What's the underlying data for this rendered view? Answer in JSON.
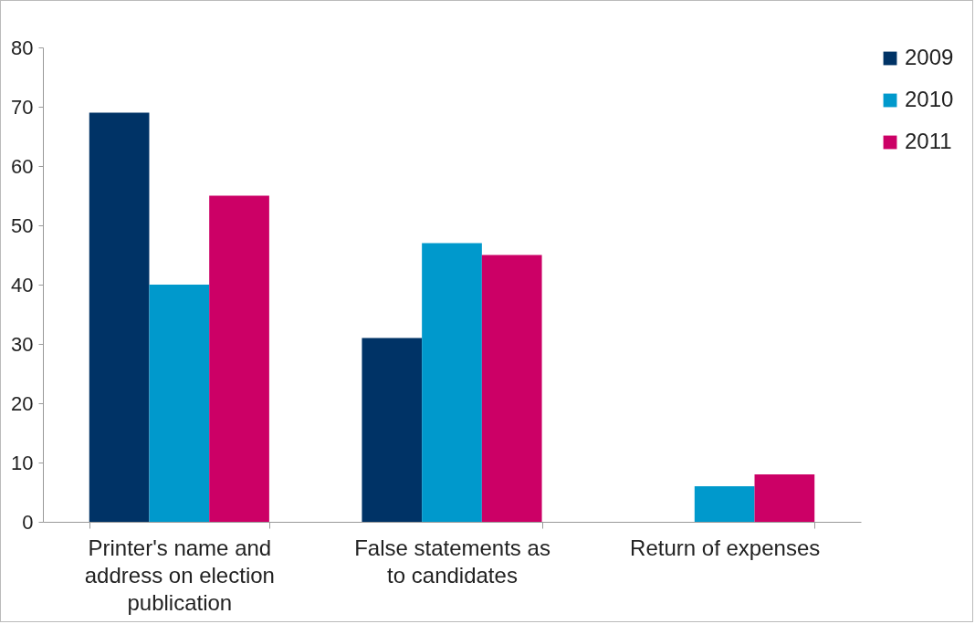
{
  "chart_data": {
    "type": "bar",
    "categories": [
      "Printer's name and address on election publication",
      "False statements as to candidates",
      "Return of expenses"
    ],
    "series": [
      {
        "name": "2009",
        "color": "#003366",
        "values": [
          69,
          31,
          0
        ]
      },
      {
        "name": "2010",
        "color": "#0099cc",
        "values": [
          40,
          47,
          6
        ]
      },
      {
        "name": "2011",
        "color": "#cc0066",
        "values": [
          55,
          45,
          8
        ]
      }
    ],
    "ylim": [
      0,
      80
    ],
    "yticks": [
      0,
      10,
      20,
      30,
      40,
      50,
      60,
      70,
      80
    ],
    "grid": false,
    "legend": "right"
  }
}
